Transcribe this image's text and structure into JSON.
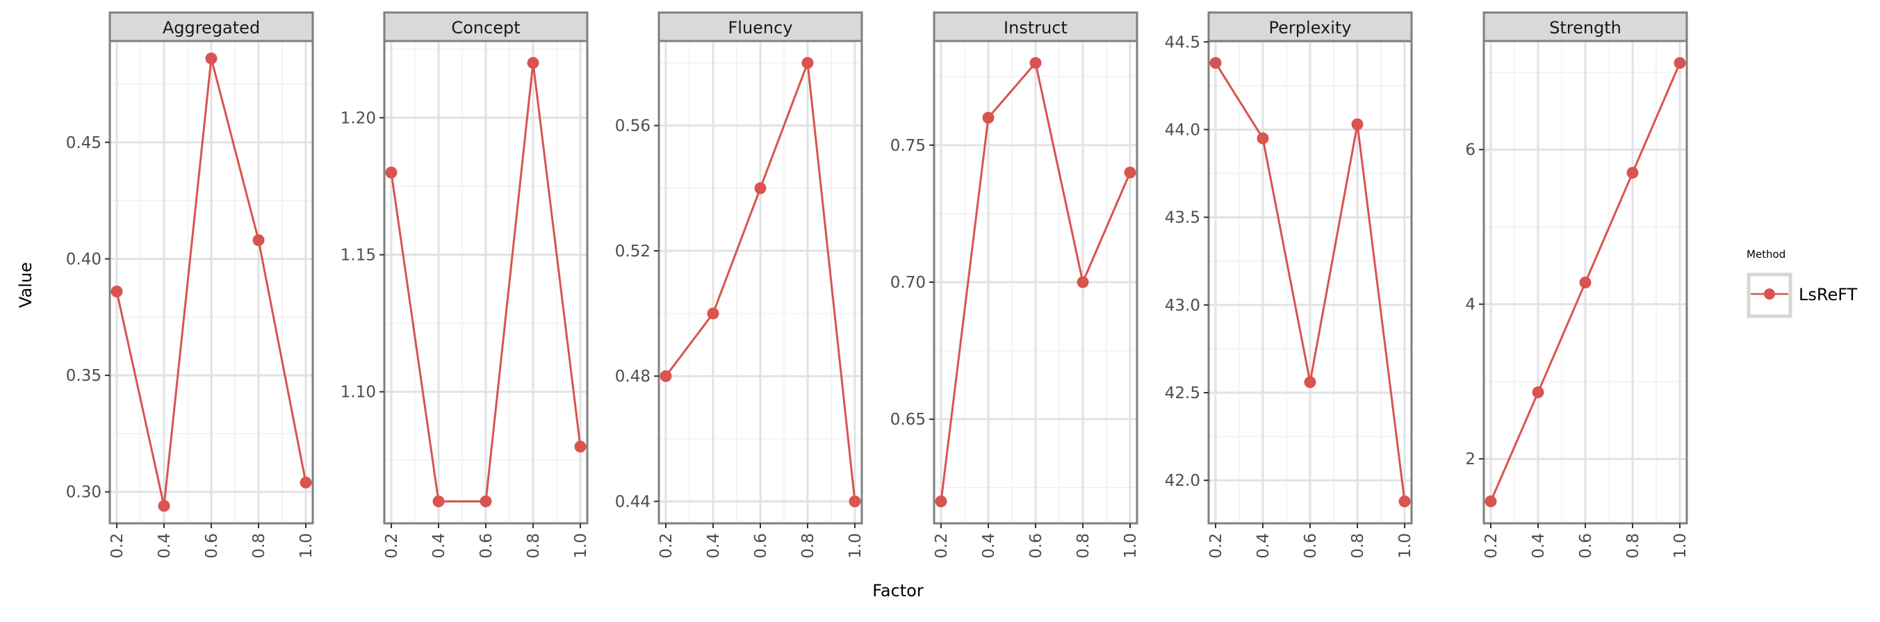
{
  "chart_data": {
    "type": "line",
    "xlabel": "Factor",
    "ylabel": "Value",
    "legend": {
      "title": "Method",
      "placement": "right",
      "entries": [
        {
          "label": "LsReFT",
          "color": "#d9534f"
        }
      ]
    },
    "series_color": "#d9534f",
    "grid": true,
    "x": [
      0.2,
      0.4,
      0.6,
      0.8,
      1.0
    ],
    "x_tick_labels": [
      "0.2",
      "0.4",
      "0.6",
      "0.8",
      "1.0"
    ],
    "panels": [
      {
        "title": "Aggregated",
        "series": [
          {
            "name": "LsReFT",
            "values": [
              0.386,
              0.294,
              0.486,
              0.408,
              0.304
            ]
          }
        ],
        "ylim": [
          0.2865,
          0.4935
        ],
        "y_ticks": [
          0.3,
          0.35,
          0.4,
          0.45
        ],
        "y_tick_labels": [
          "0.30",
          "0.35",
          "0.40",
          "0.45"
        ],
        "y_minor": [
          0.325,
          0.375,
          0.425,
          0.475
        ]
      },
      {
        "title": "Concept",
        "series": [
          {
            "name": "LsReFT",
            "values": [
              1.18,
              1.06,
              1.06,
              1.22,
              1.08
            ]
          }
        ],
        "ylim": [
          1.052,
          1.228
        ],
        "y_ticks": [
          1.1,
          1.15,
          1.2
        ],
        "y_tick_labels": [
          "1.10",
          "1.15",
          "1.20"
        ],
        "y_minor": [
          1.075,
          1.125,
          1.175,
          1.225
        ]
      },
      {
        "title": "Fluency",
        "series": [
          {
            "name": "LsReFT",
            "values": [
              0.48,
              0.5,
              0.54,
              0.58,
              0.44
            ]
          }
        ],
        "ylim": [
          0.433,
          0.587
        ],
        "y_ticks": [
          0.44,
          0.48,
          0.52,
          0.56
        ],
        "y_tick_labels": [
          "0.44",
          "0.48",
          "0.52",
          "0.56"
        ],
        "y_minor": [
          0.46,
          0.5,
          0.54,
          0.58
        ]
      },
      {
        "title": "Instruct",
        "series": [
          {
            "name": "LsReFT",
            "values": [
              0.62,
              0.76,
              0.78,
              0.7,
              0.74
            ]
          }
        ],
        "ylim": [
          0.612,
          0.788
        ],
        "y_ticks": [
          0.65,
          0.7,
          0.75
        ],
        "y_tick_labels": [
          "0.65",
          "0.70",
          "0.75"
        ],
        "y_minor": [
          0.625,
          0.675,
          0.725,
          0.775
        ]
      },
      {
        "title": "Perplexity",
        "series": [
          {
            "name": "LsReFT",
            "values": [
              44.38,
              43.95,
              42.56,
              44.03,
              41.88
            ]
          }
        ],
        "ylim": [
          41.755,
          44.505
        ],
        "y_ticks": [
          42.0,
          42.5,
          43.0,
          43.5,
          44.0,
          44.5
        ],
        "y_tick_labels": [
          "42.0",
          "42.5",
          "43.0",
          "43.5",
          "44.0",
          "44.5"
        ],
        "y_minor": [
          42.25,
          42.75,
          43.25,
          43.75,
          44.25
        ]
      },
      {
        "title": "Strength",
        "series": [
          {
            "name": "LsReFT",
            "values": [
              1.45,
              2.86,
              4.28,
              5.7,
              7.12
            ]
          }
        ],
        "ylim": [
          1.166,
          7.404
        ],
        "y_ticks": [
          2,
          4,
          6
        ],
        "y_tick_labels": [
          "2",
          "4",
          "6"
        ],
        "y_minor": [
          3,
          5,
          7
        ]
      }
    ]
  }
}
